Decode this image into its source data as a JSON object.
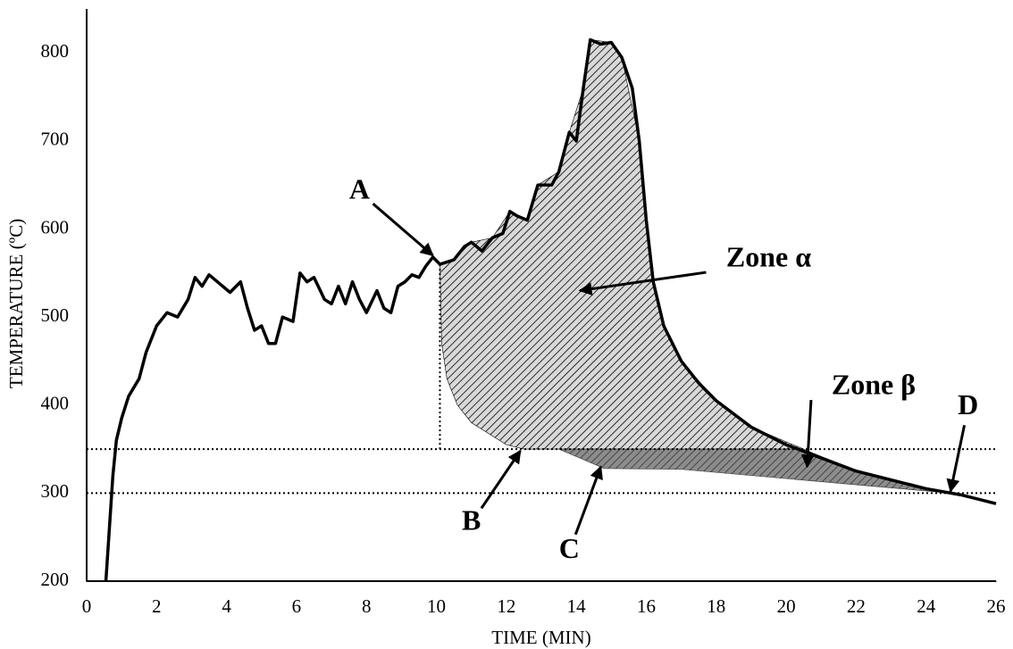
{
  "chart_data": {
    "type": "line",
    "x_label": "TIME (MIN)",
    "y_label": "TEMPERATURE (ºC)",
    "xlim": [
      0,
      26
    ],
    "ylim": [
      200,
      850
    ],
    "xticks": [
      0,
      2,
      4,
      6,
      8,
      10,
      12,
      14,
      16,
      18,
      20,
      22,
      24,
      26
    ],
    "yticks": [
      200,
      300,
      400,
      500,
      600,
      700,
      800
    ],
    "grid": false,
    "series": [
      {
        "color": "#000000",
        "x": [
          0.55,
          0.65,
          0.75,
          0.85,
          1.0,
          1.2,
          1.5,
          1.7,
          2.0,
          2.3,
          2.6,
          2.9,
          3.1,
          3.3,
          3.5,
          3.8,
          4.1,
          4.4,
          4.6,
          4.8,
          5.0,
          5.2,
          5.4,
          5.6,
          5.9,
          6.1,
          6.3,
          6.5,
          6.8,
          7.0,
          7.2,
          7.4,
          7.6,
          7.8,
          8.0,
          8.3,
          8.5,
          8.7,
          8.9,
          9.1,
          9.3,
          9.5,
          9.7,
          9.9,
          10.1,
          10.5,
          10.8,
          11.0,
          11.3,
          11.6,
          11.9,
          12.1,
          12.3,
          12.6,
          12.9,
          13.3,
          13.5,
          13.8,
          14.0,
          14.2,
          14.4,
          14.7,
          15.0,
          15.3,
          15.6,
          15.8,
          16.0,
          16.2,
          16.5,
          17,
          17.5,
          18,
          19,
          20,
          21,
          22,
          23,
          24,
          25,
          26
        ],
        "values": [
          200,
          260,
          320,
          360,
          385,
          410,
          430,
          460,
          490,
          505,
          500,
          520,
          545,
          535,
          548,
          538,
          528,
          540,
          510,
          485,
          490,
          470,
          470,
          500,
          495,
          550,
          540,
          545,
          520,
          515,
          535,
          515,
          540,
          520,
          505,
          530,
          510,
          505,
          535,
          540,
          548,
          545,
          558,
          568,
          560,
          565,
          580,
          585,
          575,
          590,
          595,
          620,
          615,
          610,
          650,
          650,
          665,
          710,
          700,
          760,
          815,
          810,
          812,
          795,
          760,
          700,
          610,
          540,
          490,
          450,
          425,
          405,
          375,
          355,
          340,
          325,
          315,
          305,
          298,
          288
        ]
      }
    ],
    "areas": [
      {
        "label": "Zone α",
        "color": "#d9d9d9",
        "hatch": "#000000",
        "x": [
          10.1,
          10.5,
          11,
          11.6,
          12.1,
          12.6,
          12.9,
          13.5,
          13.8,
          14.2,
          14.4,
          15,
          15.3,
          15.8,
          16,
          16.2,
          16.5,
          17,
          18,
          19,
          20.5,
          12.5,
          12,
          11,
          10.6,
          10.3,
          10.15
        ],
        "y": [
          560,
          565,
          585,
          590,
          620,
          610,
          650,
          665,
          710,
          760,
          815,
          812,
          795,
          700,
          610,
          540,
          490,
          450,
          405,
          375,
          350,
          350,
          355,
          380,
          400,
          430,
          470
        ],
        "text_x": 19.5,
        "text_y": 565,
        "arrow_x": 14.1,
        "arrow_y": 530
      },
      {
        "label": "Zone β",
        "color": "#8c8c8c",
        "hatch": "#333333",
        "x": [
          13.5,
          20.5,
          22,
          23,
          24.7,
          17,
          14.8
        ],
        "y": [
          350,
          350,
          325,
          315,
          300,
          327,
          328
        ],
        "text_x": 22.5,
        "text_y": 420,
        "arrow_x": 20.6,
        "arrow_y": 330
      }
    ],
    "reference_lines": [
      {
        "y": 350
      },
      {
        "y": 300
      },
      {
        "x": 10.1,
        "y_range": [
          350,
          560
        ]
      }
    ],
    "annotations": [
      {
        "text": "A",
        "x": 7.8,
        "y": 642,
        "arrow_x": 9.9,
        "arrow_y": 570
      },
      {
        "text": "B",
        "x": 11.0,
        "y": 266,
        "arrow_x": 12.4,
        "arrow_y": 348
      },
      {
        "text": "C",
        "x": 13.8,
        "y": 234,
        "arrow_x": 14.7,
        "arrow_y": 330
      },
      {
        "text": "D",
        "x": 25.2,
        "y": 397,
        "arrow_x": 24.7,
        "arrow_y": 302
      }
    ]
  }
}
